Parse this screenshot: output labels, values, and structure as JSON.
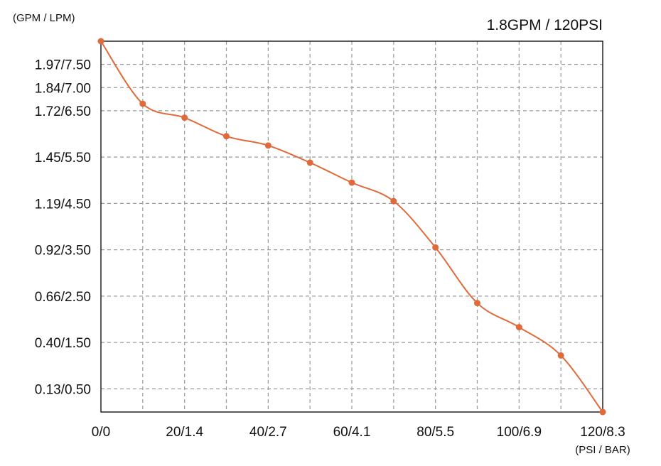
{
  "chart_data": {
    "type": "line",
    "title": "1.8GPM / 120PSI",
    "ylabel": "(GPM / LPM)",
    "xlabel": "(PSI / BAR)",
    "x_ticks": [
      "0/0",
      "20/1.4",
      "40/2.7",
      "60/4.1",
      "80/5.5",
      "100/6.9",
      "120/8.3"
    ],
    "y_ticks": [
      "0.13/0.50",
      "0.40/1.50",
      "0.66/2.50",
      "0.92/3.50",
      "1.19/4.50",
      "1.45/5.50",
      "1.72/6.50",
      "1.84/7.00",
      "1.97/7.50"
    ],
    "xlim": [
      0,
      120
    ],
    "ylim": [
      0,
      8.0
    ],
    "grid": true,
    "colors": {
      "line": "#e06a3a",
      "grid": "#9a9a9a",
      "axis": "#222222"
    },
    "series": [
      {
        "x": [
          0,
          10,
          20,
          30,
          40,
          50,
          60,
          70,
          80,
          90,
          100,
          110,
          120
        ],
        "y": [
          8.0,
          6.65,
          6.35,
          5.95,
          5.75,
          5.38,
          4.95,
          4.55,
          3.55,
          2.35,
          1.83,
          1.22,
          0.0
        ]
      }
    ]
  }
}
